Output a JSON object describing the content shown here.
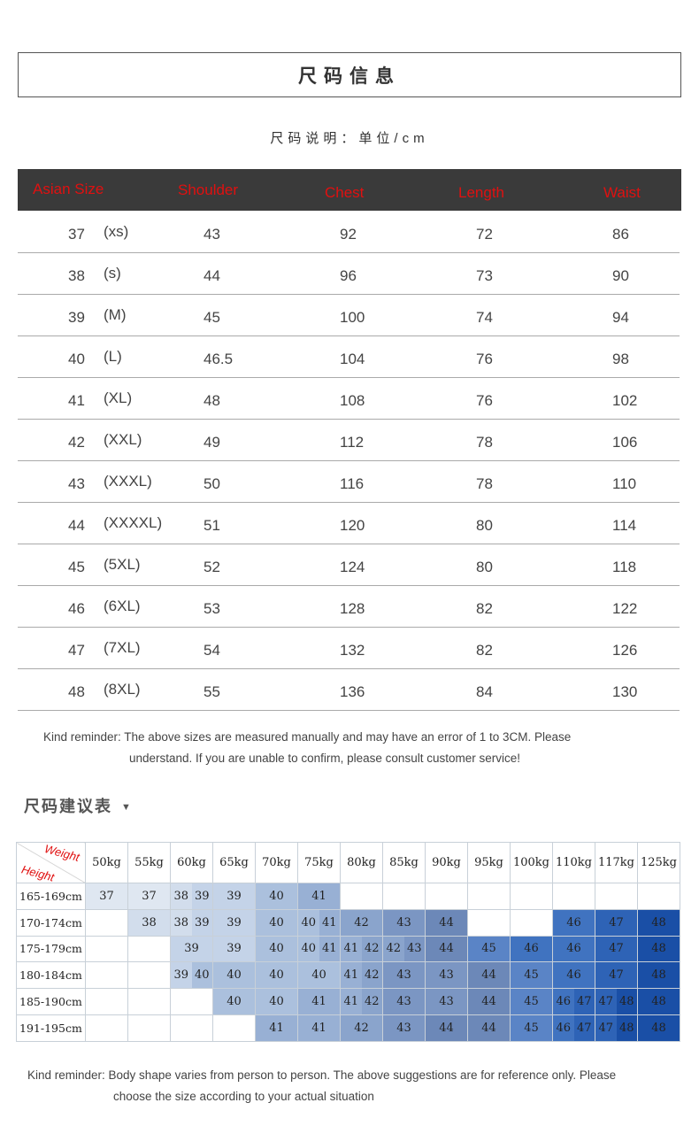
{
  "title": "尺码信息",
  "unit_note": "尺码说明：单位/cm",
  "size_table": {
    "headers": [
      "Asian Size",
      "Shoulder",
      "Chest",
      "Length",
      "Waist"
    ],
    "header_color": "#e01010",
    "rows": [
      {
        "size": "37",
        "label": "(xs)",
        "shoulder": "43",
        "chest": "92",
        "length": "72",
        "waist": "86"
      },
      {
        "size": "38",
        "label": "(s)",
        "shoulder": "44",
        "chest": "96",
        "length": "73",
        "waist": "90"
      },
      {
        "size": "39",
        "label": "(M)",
        "shoulder": "45",
        "chest": "100",
        "length": "74",
        "waist": "94"
      },
      {
        "size": "40",
        "label": "(L)",
        "shoulder": "46.5",
        "chest": "104",
        "length": "76",
        "waist": "98"
      },
      {
        "size": "41",
        "label": "(XL)",
        "shoulder": "48",
        "chest": "108",
        "length": "76",
        "waist": "102"
      },
      {
        "size": "42",
        "label": "(XXL)",
        "shoulder": "49",
        "chest": "112",
        "length": "78",
        "waist": "106"
      },
      {
        "size": "43",
        "label": "(XXXL)",
        "shoulder": "50",
        "chest": "116",
        "length": "78",
        "waist": "110"
      },
      {
        "size": "44",
        "label": "(XXXXL)",
        "shoulder": "51",
        "chest": "120",
        "length": "80",
        "waist": "114"
      },
      {
        "size": "45",
        "label": "(5XL)",
        "shoulder": "52",
        "chest": "124",
        "length": "80",
        "waist": "118"
      },
      {
        "size": "46",
        "label": "(6XL)",
        "shoulder": "53",
        "chest": "128",
        "length": "82",
        "waist": "122"
      },
      {
        "size": "47",
        "label": "(7XL)",
        "shoulder": "54",
        "chest": "132",
        "length": "82",
        "waist": "126"
      },
      {
        "size": "48",
        "label": "(8XL)",
        "shoulder": "55",
        "chest": "136",
        "length": "84",
        "waist": "130"
      }
    ]
  },
  "reminder1": [
    "Kind reminder: The above sizes are measured manually and may have an error of 1 to 3CM. Please",
    "understand. If you are unable to confirm, please consult customer service!"
  ],
  "recommend": {
    "title": "尺码建议表",
    "arrow": "▼",
    "corner_weight": "Weight",
    "corner_height": "Height",
    "weights": [
      "50kg",
      "55kg",
      "60kg",
      "65kg",
      "70kg",
      "75kg",
      "80kg",
      "85kg",
      "90kg",
      "95kg",
      "100kg",
      "110kg",
      "117kg",
      "125kg"
    ],
    "rows": [
      {
        "height": "165-169cm",
        "cells": [
          "37",
          "37",
          "38 39",
          "39",
          "40",
          "41",
          "",
          "",
          "",
          "",
          "",
          "",
          "",
          ""
        ]
      },
      {
        "height": "170-174cm",
        "cells": [
          "",
          "38",
          "38 39",
          "39",
          "40",
          "40 41",
          "42",
          "43",
          "44",
          "",
          "",
          "46",
          "47",
          "48"
        ]
      },
      {
        "height": "175-179cm",
        "cells": [
          "",
          "",
          "39",
          "39",
          "40",
          "40 41",
          "41 42",
          "42 43",
          "44",
          "45",
          "46",
          "46",
          "47",
          "48"
        ]
      },
      {
        "height": "180-184cm",
        "cells": [
          "",
          "",
          "39 40",
          "40",
          "40",
          "40",
          "41 42",
          "43",
          "43",
          "44",
          "45",
          "46",
          "47",
          "48"
        ]
      },
      {
        "height": "185-190cm",
        "cells": [
          "",
          "",
          "",
          "40",
          "40",
          "41",
          "41 42",
          "43",
          "43",
          "44",
          "45",
          "46 47",
          "47 48",
          "48"
        ]
      },
      {
        "height": "191-195cm",
        "cells": [
          "",
          "",
          "",
          "",
          "41",
          "41",
          "42",
          "43",
          "44",
          "44",
          "45",
          "46 47",
          "47 48",
          "48"
        ]
      }
    ],
    "colors": {
      "37": "#dfe7f1",
      "38": "#d2ddec",
      "39": "#c4d3e8",
      "40": "#abc0dd",
      "41": "#98b0d4",
      "42": "#8aa4cc",
      "43": "#7b96c3",
      "44": "#6c88b8",
      "45": "#5a84c6",
      "46": "#4073c0",
      "47": "#2e63b6",
      "48": "#1a4fa6"
    }
  },
  "reminder2": [
    "Kind reminder: Body shape varies from person to person. The above suggestions are for reference only. Please",
    "choose the size according to your actual situation"
  ]
}
